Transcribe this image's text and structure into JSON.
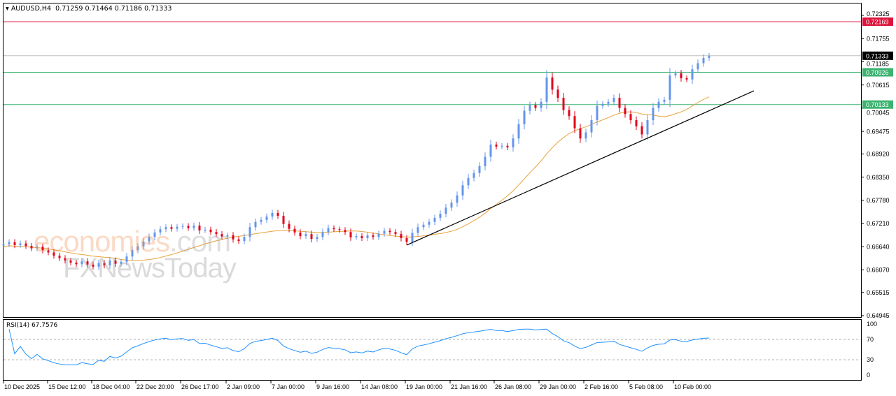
{
  "header": {
    "symbol": "AUDUSD,H4",
    "open": "0.71259",
    "high": "0.71464",
    "low": "0.71186",
    "close": "0.71333"
  },
  "watermark": {
    "brand1": "economies.com",
    "brand2": "FXNewsToday"
  },
  "colors": {
    "bull": "#6495ed",
    "bear": "#e0001b",
    "ma": "#e8a33a",
    "resistance": "#dc143c",
    "support": "#3cb371",
    "rsi": "#1e90ff",
    "current": "#000000"
  },
  "chart_data": {
    "type": "candlestick",
    "title": "AUDUSD,H4",
    "y_ticks": [
      "0.72325",
      "0.71755",
      "0.71185",
      "0.70615",
      "0.70045",
      "0.69475",
      "0.68920",
      "0.68350",
      "0.67780",
      "0.67210",
      "0.66640",
      "0.66070",
      "0.65515",
      "0.64945"
    ],
    "ylim": [
      0.64945,
      0.72325
    ],
    "x_ticks": [
      "10 Dec 2025",
      "15 Dec 12:00",
      "18 Dec 04:00",
      "22 Dec 20:00",
      "26 Dec 17:00",
      "2 Jan 09:00",
      "7 Jan 00:00",
      "9 Jan 16:00",
      "14 Jan 08:00",
      "19 Jan 00:00",
      "21 Jan 16:00",
      "26 Jan 08:00",
      "29 Jan 00:00",
      "2 Feb 16:00",
      "5 Feb 08:00",
      "10 Feb 00:00"
    ],
    "closes": [
      0.667,
      0.6675,
      0.6668,
      0.6672,
      0.6666,
      0.666,
      0.6664,
      0.6655,
      0.665,
      0.6642,
      0.6636,
      0.663,
      0.6625,
      0.6621,
      0.6628,
      0.662,
      0.6615,
      0.6624,
      0.6618,
      0.663,
      0.6622,
      0.6627,
      0.664,
      0.6656,
      0.6665,
      0.6677,
      0.6688,
      0.6699,
      0.6707,
      0.6712,
      0.6708,
      0.6713,
      0.6715,
      0.671,
      0.6716,
      0.6704,
      0.6706,
      0.67,
      0.6695,
      0.6689,
      0.6692,
      0.6682,
      0.6678,
      0.6688,
      0.6712,
      0.6725,
      0.673,
      0.6738,
      0.6747,
      0.674,
      0.672,
      0.6708,
      0.6699,
      0.669,
      0.6695,
      0.6683,
      0.6688,
      0.67,
      0.671,
      0.6707,
      0.6705,
      0.67,
      0.6687,
      0.669,
      0.6685,
      0.6692,
      0.6688,
      0.6696,
      0.6703,
      0.67,
      0.6695,
      0.6685,
      0.6676,
      0.6698,
      0.6712,
      0.6718,
      0.6725,
      0.6735,
      0.6745,
      0.676,
      0.6772,
      0.679,
      0.6815,
      0.6833,
      0.6845,
      0.6862,
      0.6885,
      0.6915,
      0.691,
      0.6912,
      0.6908,
      0.693,
      0.6965,
      0.6998,
      0.7012,
      0.7005,
      0.702,
      0.708,
      0.705,
      0.703,
      0.7,
      0.6985,
      0.6955,
      0.693,
      0.6945,
      0.6975,
      0.701,
      0.7015,
      0.702,
      0.703,
      0.7005,
      0.699,
      0.6975,
      0.696,
      0.694,
      0.6975,
      0.7005,
      0.702,
      0.7025,
      0.7085,
      0.709,
      0.7078,
      0.7075,
      0.71,
      0.7115,
      0.7128,
      0.7133
    ],
    "levels": [
      {
        "price": "0.72169",
        "color": "#dc143c"
      },
      {
        "price": "0.71333",
        "color": "#000000",
        "current": true
      },
      {
        "price": "0.70926",
        "color": "#3cb371"
      },
      {
        "price": "0.70133",
        "color": "#3cb371"
      }
    ],
    "trendline": {
      "start_price": 0.6668,
      "end_price": 0.7047
    },
    "rsi": {
      "label": "RSI(14) 67.7576",
      "period": 14,
      "ticks": [
        "100",
        "70",
        "30",
        "0"
      ],
      "ylim": [
        0,
        100
      ]
    }
  }
}
